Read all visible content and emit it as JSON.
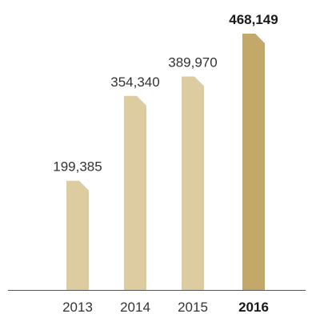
{
  "chart_data": {
    "type": "bar",
    "categories": [
      "2013",
      "2014",
      "2015",
      "2016"
    ],
    "values": [
      199385,
      354340,
      389970,
      468149
    ],
    "value_labels": [
      "199,385",
      "354,340",
      "389,970",
      "468,149"
    ],
    "highlight_index": 3,
    "colors": {
      "bar": "#dccca0",
      "bar_highlight": "#c2a869",
      "axis": "#555555"
    },
    "ylim": [
      0,
      468149
    ],
    "grid": false,
    "title": "",
    "xlabel": "",
    "ylabel": ""
  }
}
